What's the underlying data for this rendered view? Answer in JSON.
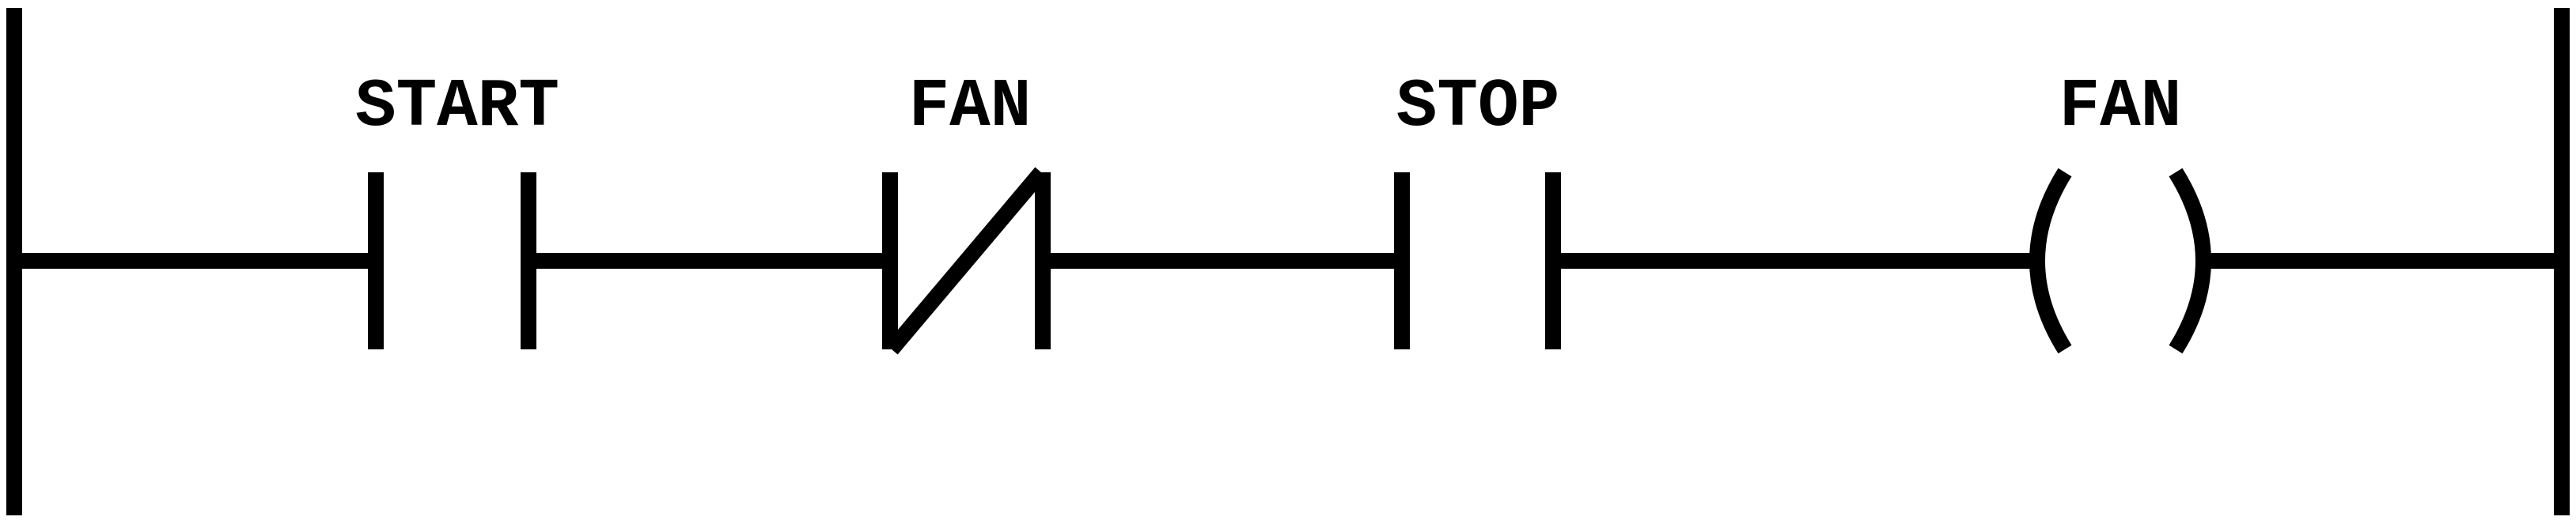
{
  "ladder": {
    "rung_count": 1,
    "colors": {
      "line": "#000000",
      "background": "#ffffff"
    },
    "elements": [
      {
        "type": "contact-normally-open",
        "label": "START"
      },
      {
        "type": "contact-normally-closed",
        "label": "FAN"
      },
      {
        "type": "contact-normally-open",
        "label": "STOP"
      },
      {
        "type": "output-coil",
        "label": "FAN"
      }
    ]
  }
}
